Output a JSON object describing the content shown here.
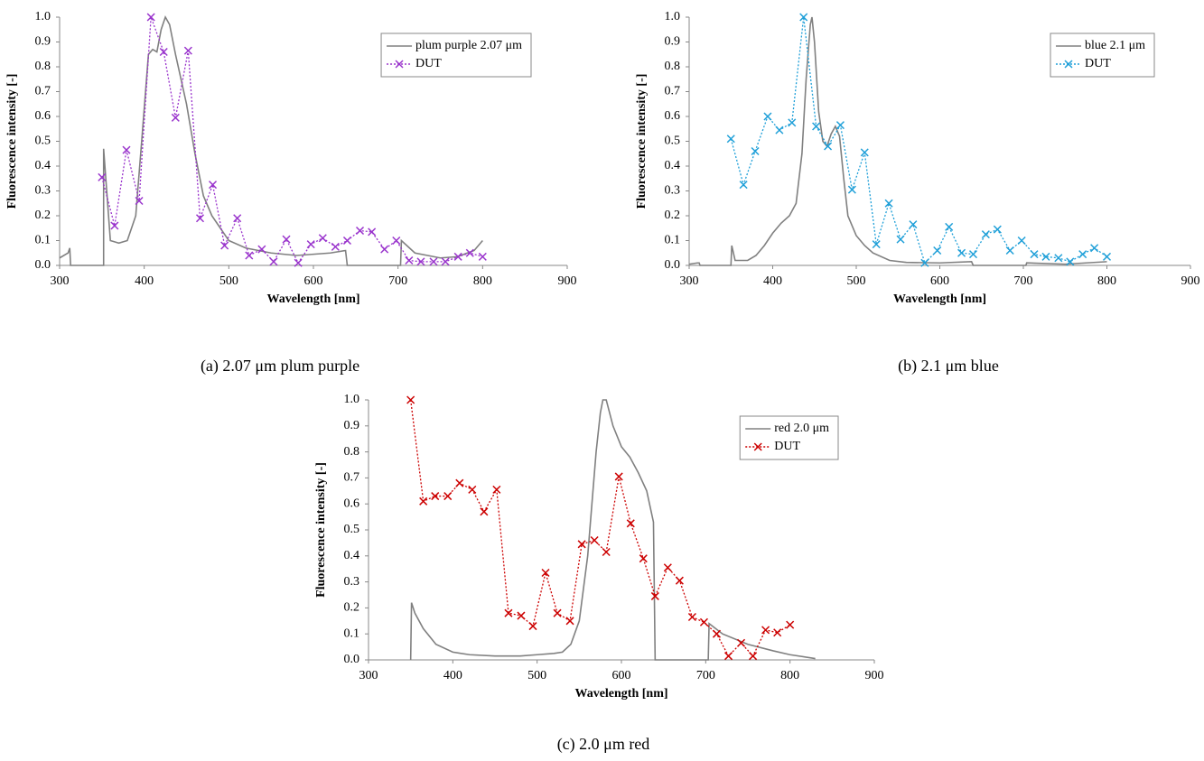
{
  "chart_data": [
    {
      "type": "line",
      "caption": "(a) 2.07 μm plum purple",
      "xlabel": "Wavelength [nm]",
      "ylabel": "Fluorescence intensity [-]",
      "xlim": [
        300,
        900
      ],
      "xticks": [
        300,
        400,
        500,
        600,
        700,
        800,
        900
      ],
      "ylim": [
        0,
        1
      ],
      "yticks": [
        {
          "value": 0,
          "label": "0.0"
        },
        {
          "value": 0.1,
          "label": "0.1"
        },
        {
          "value": 0.2,
          "label": "0.2"
        },
        {
          "value": 0.3,
          "label": "0.3"
        },
        {
          "value": 0.4,
          "label": "0.4"
        },
        {
          "value": 0.5,
          "label": "0.5"
        },
        {
          "value": 0.6,
          "label": "0.6"
        },
        {
          "value": 0.7,
          "label": "0.7"
        },
        {
          "value": 0.8,
          "label": "0.8"
        },
        {
          "value": 0.9,
          "label": "0.9"
        },
        {
          "value": 1,
          "label": "1.0"
        }
      ],
      "grid": false,
      "legend": "upper right",
      "series": [
        {
          "name": "plum purple 2.07 μm",
          "color": "#808080",
          "linestyle": "solid",
          "marker": "none",
          "x": [
            300,
            310,
            312,
            313,
            352,
            352,
            360,
            370,
            380,
            390,
            397,
            405,
            410,
            415,
            420,
            425,
            430,
            437,
            450,
            460,
            470,
            480,
            490,
            500,
            520,
            550,
            580,
            600,
            620,
            638,
            640,
            703,
            704,
            720,
            750,
            770,
            790,
            800
          ],
          "values": [
            0.03,
            0.05,
            0.07,
            0,
            0,
            0.47,
            0.1,
            0.09,
            0.1,
            0.2,
            0.5,
            0.85,
            0.87,
            0.86,
            0.95,
            1.0,
            0.97,
            0.85,
            0.65,
            0.45,
            0.28,
            0.2,
            0.15,
            0.1,
            0.07,
            0.05,
            0.04,
            0.045,
            0.05,
            0.06,
            0,
            0,
            0.1,
            0.05,
            0.03,
            0.035,
            0.06,
            0.1
          ]
        },
        {
          "name": "DUT",
          "color": "#9933cc",
          "linestyle": "dotted",
          "marker": "x",
          "x": [
            350,
            365,
            379,
            394,
            408,
            423,
            437,
            452,
            466,
            481,
            495,
            510,
            524,
            539,
            553,
            568,
            582,
            597,
            611,
            626,
            640,
            655,
            669,
            684,
            698,
            713,
            727,
            742,
            756,
            771,
            785,
            800
          ],
          "values": [
            0.355,
            0.16,
            0.465,
            0.26,
            1.0,
            0.86,
            0.595,
            0.865,
            0.19,
            0.325,
            0.08,
            0.19,
            0.04,
            0.065,
            0.015,
            0.105,
            0.01,
            0.085,
            0.11,
            0.075,
            0.1,
            0.14,
            0.135,
            0.065,
            0.1,
            0.02,
            0.015,
            0.015,
            0.015,
            0.035,
            0.05,
            0.035
          ]
        }
      ]
    },
    {
      "type": "line",
      "caption": "(b) 2.1 μm blue",
      "xlabel": "Wavelength [nm]",
      "ylabel": "Fluorescence intensity [-]",
      "xlim": [
        300,
        900
      ],
      "xticks": [
        300,
        400,
        500,
        600,
        700,
        800,
        900
      ],
      "ylim": [
        0,
        1
      ],
      "yticks": [
        {
          "value": 0,
          "label": "0.0"
        },
        {
          "value": 0.1,
          "label": "0.1"
        },
        {
          "value": 0.2,
          "label": "0.2"
        },
        {
          "value": 0.3,
          "label": "0.3"
        },
        {
          "value": 0.4,
          "label": "0.4"
        },
        {
          "value": 0.5,
          "label": "0.5"
        },
        {
          "value": 0.6,
          "label": "0.6"
        },
        {
          "value": 0.7,
          "label": "0.7"
        },
        {
          "value": 0.8,
          "label": "0.8"
        },
        {
          "value": 0.9,
          "label": "0.9"
        },
        {
          "value": 1,
          "label": "1.0"
        }
      ],
      "grid": false,
      "legend": "upper right",
      "series": [
        {
          "name": "blue 2.1 μm",
          "color": "#808080",
          "linestyle": "solid",
          "marker": "none",
          "x": [
            300,
            310,
            312,
            313,
            350,
            351,
            355,
            370,
            380,
            390,
            400,
            410,
            420,
            428,
            435,
            440,
            445,
            447,
            450,
            455,
            460,
            465,
            470,
            475,
            480,
            485,
            490,
            500,
            510,
            520,
            540,
            560,
            600,
            638,
            640,
            703,
            704,
            750,
            800
          ],
          "values": [
            0.005,
            0.01,
            0.01,
            0,
            0,
            0.08,
            0.02,
            0.02,
            0.04,
            0.08,
            0.13,
            0.17,
            0.2,
            0.25,
            0.45,
            0.75,
            0.97,
            1.0,
            0.9,
            0.62,
            0.5,
            0.48,
            0.53,
            0.56,
            0.52,
            0.35,
            0.2,
            0.12,
            0.08,
            0.05,
            0.02,
            0.012,
            0.01,
            0.015,
            0,
            0,
            0.01,
            0.005,
            0.015
          ]
        },
        {
          "name": "DUT",
          "color": "#1e9fd8",
          "linestyle": "dotted",
          "marker": "x",
          "x": [
            350,
            365,
            379,
            394,
            408,
            423,
            437,
            452,
            466,
            481,
            495,
            510,
            524,
            539,
            553,
            568,
            582,
            597,
            611,
            626,
            640,
            655,
            669,
            684,
            698,
            713,
            727,
            742,
            756,
            771,
            785,
            800
          ],
          "values": [
            0.51,
            0.325,
            0.46,
            0.6,
            0.545,
            0.575,
            1.0,
            0.56,
            0.48,
            0.565,
            0.305,
            0.455,
            0.085,
            0.25,
            0.105,
            0.165,
            0.01,
            0.06,
            0.155,
            0.05,
            0.045,
            0.125,
            0.145,
            0.06,
            0.1,
            0.045,
            0.035,
            0.03,
            0.015,
            0.045,
            0.07,
            0.035
          ]
        }
      ]
    },
    {
      "type": "line",
      "caption": "(c) 2.0 μm red",
      "xlabel": "Wavelength [nm]",
      "ylabel": "Fluorescence intensity [-]",
      "xlim": [
        300,
        900
      ],
      "xticks": [
        300,
        400,
        500,
        600,
        700,
        800,
        900
      ],
      "ylim": [
        0,
        1
      ],
      "yticks": [
        {
          "value": 0,
          "label": "0.0"
        },
        {
          "value": 0.1,
          "label": "0.1"
        },
        {
          "value": 0.2,
          "label": "0.2"
        },
        {
          "value": 0.3,
          "label": "0.3"
        },
        {
          "value": 0.4,
          "label": "0.4"
        },
        {
          "value": 0.5,
          "label": "0.5"
        },
        {
          "value": 0.6,
          "label": "0.6"
        },
        {
          "value": 0.7,
          "label": "0.7"
        },
        {
          "value": 0.8,
          "label": "0.8"
        },
        {
          "value": 0.9,
          "label": "0.9"
        },
        {
          "value": 1,
          "label": "1.0"
        }
      ],
      "grid": false,
      "legend": "upper right",
      "series": [
        {
          "name": "red 2.0 μm",
          "color": "#808080",
          "linestyle": "solid",
          "marker": "none",
          "x": [
            350,
            351,
            355,
            365,
            380,
            400,
            420,
            450,
            480,
            500,
            520,
            530,
            540,
            550,
            560,
            565,
            570,
            575,
            578,
            582,
            590,
            600,
            610,
            620,
            630,
            638,
            640,
            703,
            704,
            720,
            750,
            780,
            800,
            830
          ],
          "values": [
            0,
            0.22,
            0.18,
            0.12,
            0.06,
            0.03,
            0.02,
            0.015,
            0.015,
            0.02,
            0.025,
            0.03,
            0.06,
            0.15,
            0.4,
            0.6,
            0.8,
            0.95,
            1.0,
            1.0,
            0.9,
            0.82,
            0.78,
            0.72,
            0.65,
            0.53,
            0,
            0,
            0.14,
            0.1,
            0.06,
            0.035,
            0.02,
            0.005
          ]
        },
        {
          "name": "DUT",
          "color": "#cc0000",
          "linestyle": "dotted",
          "marker": "x",
          "x": [
            350,
            365,
            379,
            394,
            408,
            423,
            437,
            452,
            466,
            481,
            495,
            510,
            524,
            539,
            553,
            568,
            582,
            597,
            611,
            626,
            640,
            655,
            669,
            684,
            698,
            713,
            727,
            742,
            756,
            771,
            785,
            800
          ],
          "values": [
            1.0,
            0.61,
            0.63,
            0.63,
            0.68,
            0.655,
            0.57,
            0.655,
            0.18,
            0.17,
            0.13,
            0.335,
            0.18,
            0.15,
            0.445,
            0.46,
            0.415,
            0.705,
            0.525,
            0.39,
            0.245,
            0.355,
            0.305,
            0.165,
            0.145,
            0.1,
            0.015,
            0.065,
            0.015,
            0.115,
            0.105,
            0.135
          ]
        }
      ]
    }
  ]
}
